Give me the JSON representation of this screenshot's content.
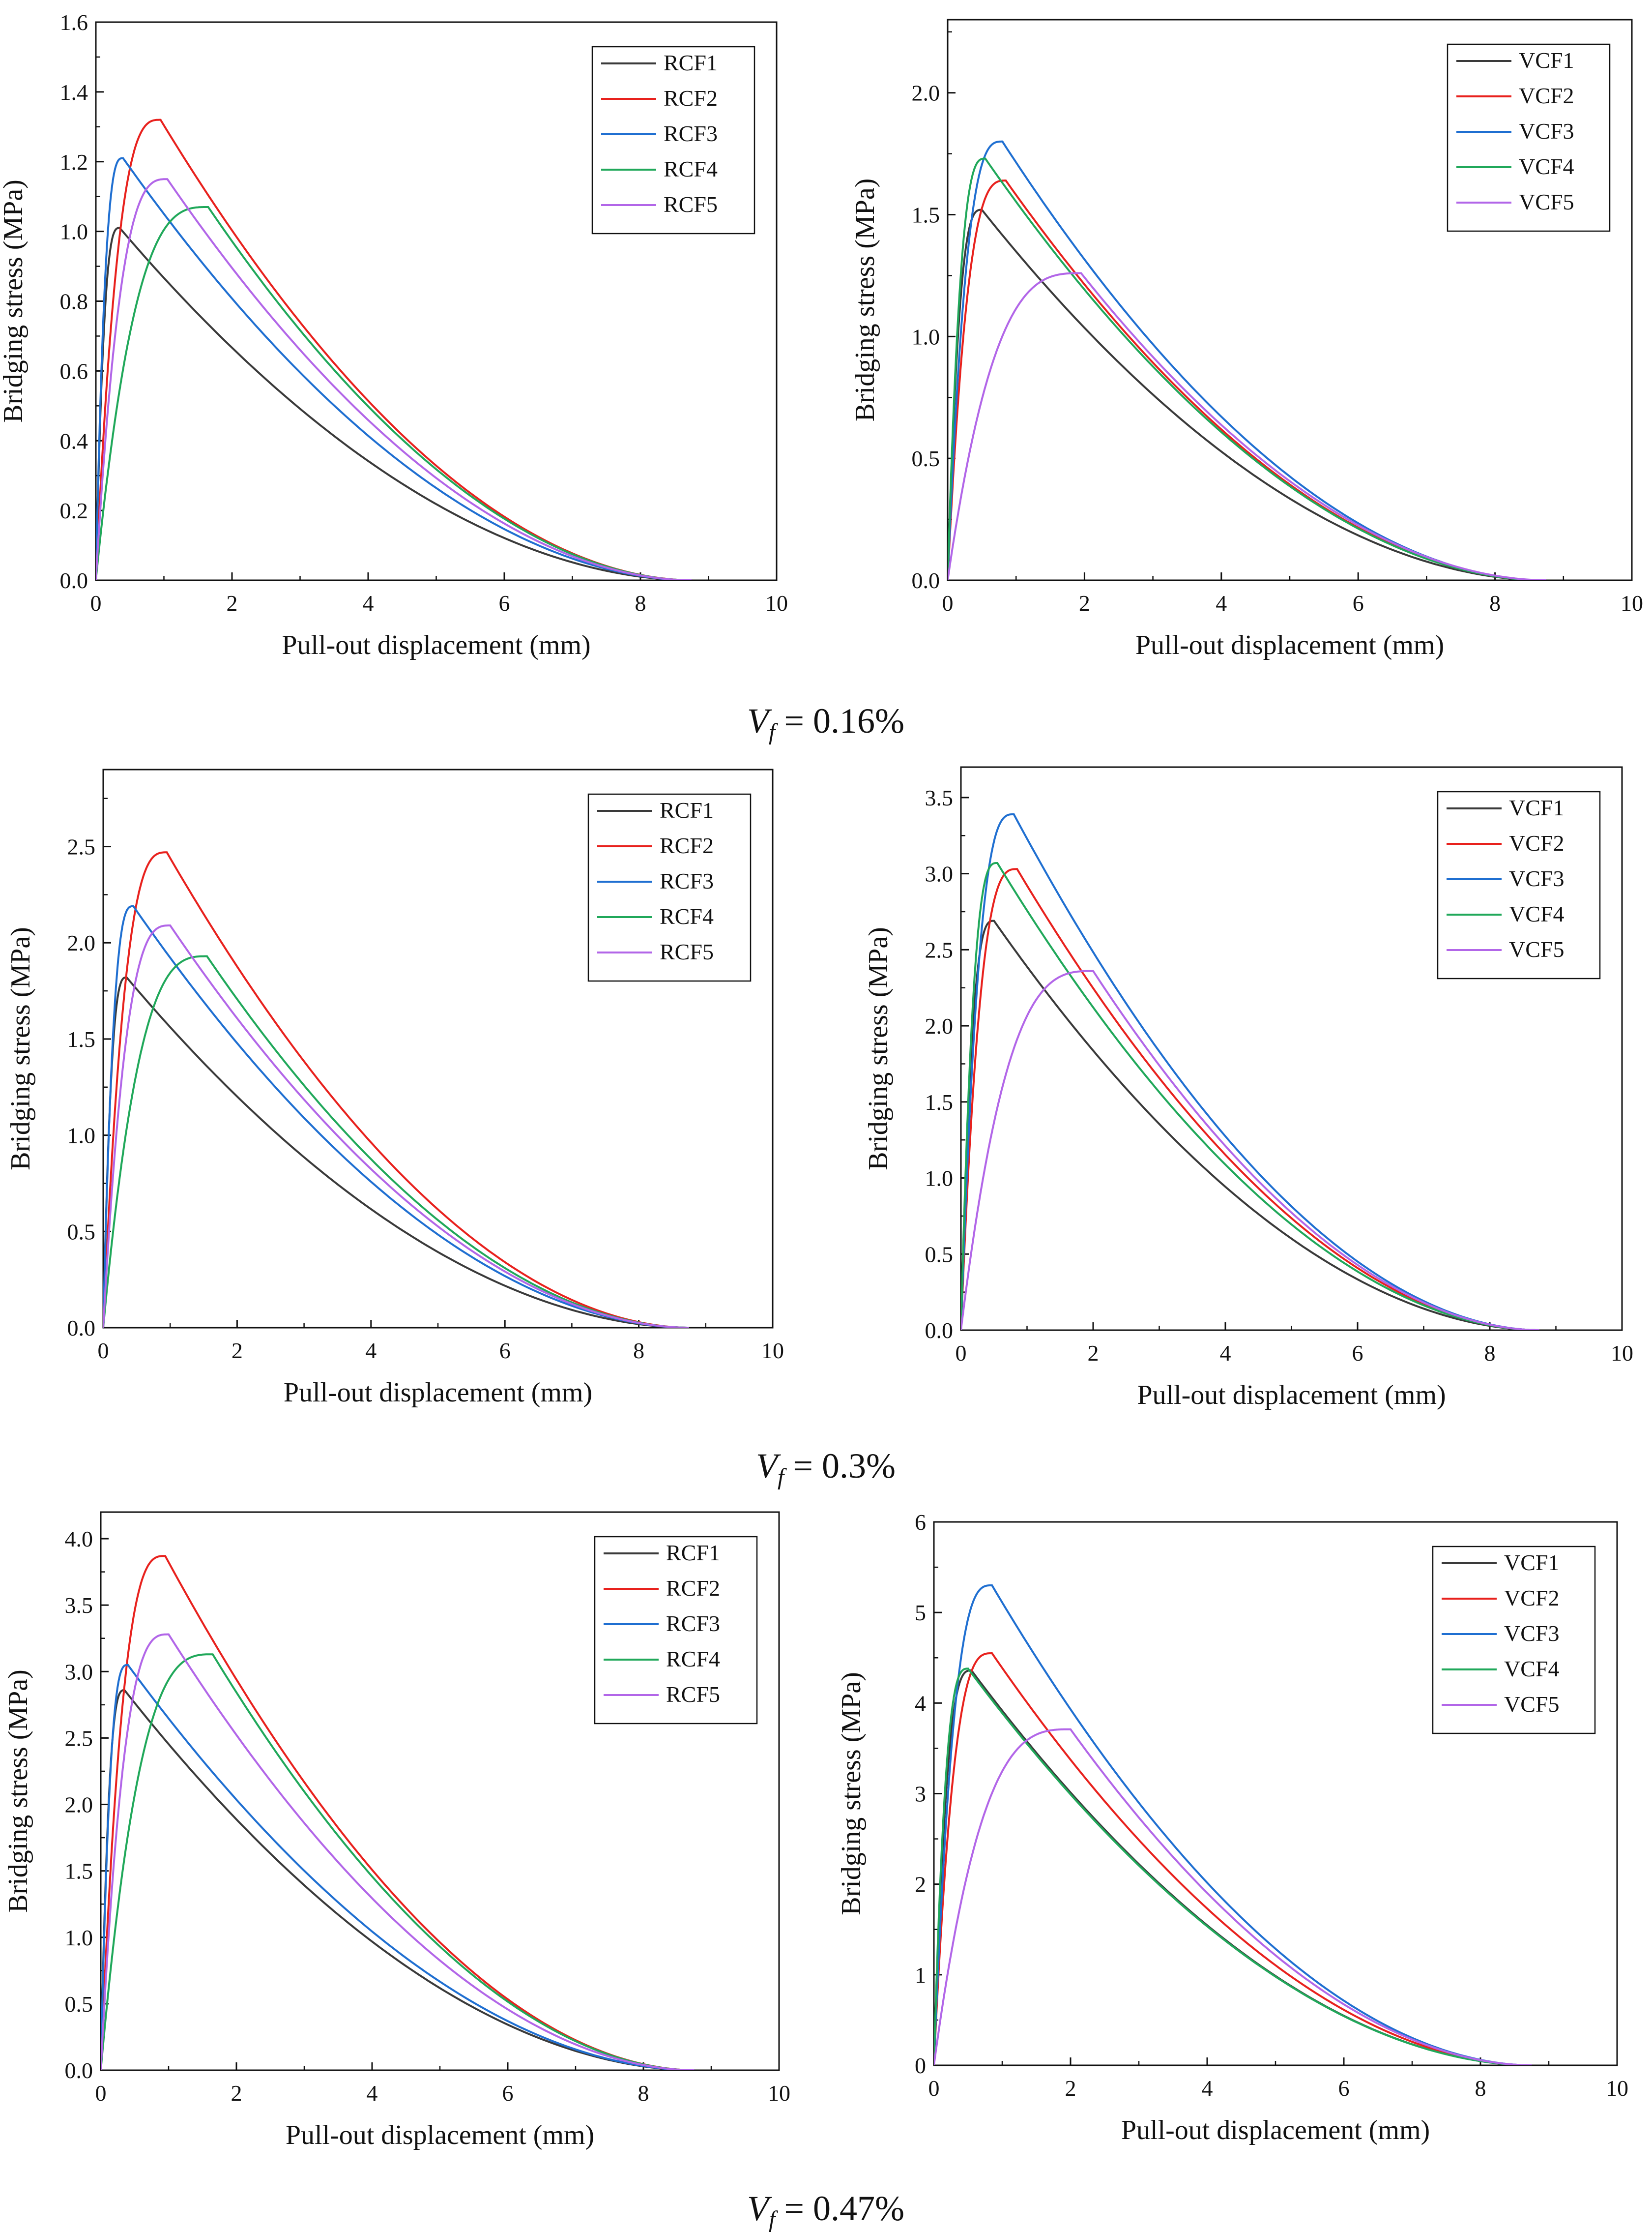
{
  "chart_data": [
    {
      "type": "line",
      "panel": "RCF Vf=0.16%",
      "xlabel": "Pull-out displacement (mm)",
      "ylabel": "Bridging stress (MPa)",
      "xlim": [
        0,
        10
      ],
      "ylim": [
        0,
        1.6
      ],
      "xticks": [
        "0",
        "2",
        "4",
        "6",
        "8",
        "10"
      ],
      "yticks": [
        "0.0",
        "0.2",
        "0.4",
        "0.6",
        "0.8",
        "1.0",
        "1.2",
        "1.4",
        "1.6"
      ],
      "legend_position": "top-right",
      "series": [
        {
          "name": "RCF1",
          "color": "#3a3a3a",
          "peak_x": 0.35,
          "peak_y": 1.01,
          "end_x": 8.75
        },
        {
          "name": "RCF2",
          "color": "#e8211d",
          "peak_x": 0.95,
          "peak_y": 1.32,
          "end_x": 8.75
        },
        {
          "name": "RCF3",
          "color": "#1f6fd1",
          "peak_x": 0.4,
          "peak_y": 1.21,
          "end_x": 8.75
        },
        {
          "name": "RCF4",
          "color": "#20a85a",
          "peak_x": 1.65,
          "peak_y": 1.07,
          "end_x": 8.75
        },
        {
          "name": "RCF5",
          "color": "#b266e8",
          "peak_x": 1.05,
          "peak_y": 1.15,
          "end_x": 8.75
        }
      ]
    },
    {
      "type": "line",
      "panel": "VCF Vf=0.16%",
      "xlabel": "Pull-out displacement (mm)",
      "ylabel": "Bridging stress (MPa)",
      "xlim": [
        0,
        10
      ],
      "ylim": [
        0,
        2.3
      ],
      "xticks": [
        "0",
        "2",
        "4",
        "6",
        "8",
        "10"
      ],
      "yticks": [
        "0.0",
        "0.5",
        "1.0",
        "1.5",
        "2.0"
      ],
      "legend_position": "top-right",
      "series": [
        {
          "name": "VCF1",
          "color": "#3a3a3a",
          "peak_x": 0.5,
          "peak_y": 1.52,
          "end_x": 8.7
        },
        {
          "name": "VCF2",
          "color": "#e8211d",
          "peak_x": 0.85,
          "peak_y": 1.64,
          "end_x": 8.7
        },
        {
          "name": "VCF3",
          "color": "#1f6fd1",
          "peak_x": 0.8,
          "peak_y": 1.8,
          "end_x": 8.7
        },
        {
          "name": "VCF4",
          "color": "#20a85a",
          "peak_x": 0.55,
          "peak_y": 1.73,
          "end_x": 8.7
        },
        {
          "name": "VCF5",
          "color": "#b266e8",
          "peak_x": 1.95,
          "peak_y": 1.26,
          "end_x": 8.75
        }
      ]
    },
    {
      "type": "line",
      "panel": "RCF Vf=0.3%",
      "xlabel": "Pull-out displacement (mm)",
      "ylabel": "Bridging stress (MPa)",
      "xlim": [
        0,
        10
      ],
      "ylim": [
        0,
        2.9
      ],
      "xticks": [
        "0",
        "2",
        "4",
        "6",
        "8",
        "10"
      ],
      "yticks": [
        "0.0",
        "0.5",
        "1.0",
        "1.5",
        "2.0",
        "2.5"
      ],
      "legend_position": "top-right",
      "series": [
        {
          "name": "RCF1",
          "color": "#3a3a3a",
          "peak_x": 0.35,
          "peak_y": 1.82,
          "end_x": 8.75
        },
        {
          "name": "RCF2",
          "color": "#e8211d",
          "peak_x": 0.95,
          "peak_y": 2.47,
          "end_x": 8.75
        },
        {
          "name": "RCF3",
          "color": "#1f6fd1",
          "peak_x": 0.45,
          "peak_y": 2.19,
          "end_x": 8.75
        },
        {
          "name": "RCF4",
          "color": "#20a85a",
          "peak_x": 1.55,
          "peak_y": 1.93,
          "end_x": 8.75
        },
        {
          "name": "RCF5",
          "color": "#b266e8",
          "peak_x": 1.0,
          "peak_y": 2.09,
          "end_x": 8.75
        }
      ]
    },
    {
      "type": "line",
      "panel": "VCF Vf=0.3%",
      "xlabel": "Pull-out displacement (mm)",
      "ylabel": "Bridging stress (MPa)",
      "xlim": [
        0,
        10
      ],
      "ylim": [
        0,
        3.7
      ],
      "xticks": [
        "0",
        "2",
        "4",
        "6",
        "8",
        "10"
      ],
      "yticks": [
        "0.0",
        "0.5",
        "1.0",
        "1.5",
        "2.0",
        "2.5",
        "3.0",
        "3.5"
      ],
      "legend_position": "top-right",
      "series": [
        {
          "name": "VCF1",
          "color": "#3a3a3a",
          "peak_x": 0.5,
          "peak_y": 2.69,
          "end_x": 8.75
        },
        {
          "name": "VCF2",
          "color": "#e8211d",
          "peak_x": 0.85,
          "peak_y": 3.03,
          "end_x": 8.75
        },
        {
          "name": "VCF3",
          "color": "#1f6fd1",
          "peak_x": 0.8,
          "peak_y": 3.39,
          "end_x": 8.75
        },
        {
          "name": "VCF4",
          "color": "#20a85a",
          "peak_x": 0.55,
          "peak_y": 3.07,
          "end_x": 8.75
        },
        {
          "name": "VCF5",
          "color": "#b266e8",
          "peak_x": 2.0,
          "peak_y": 2.36,
          "end_x": 8.75
        }
      ]
    },
    {
      "type": "line",
      "panel": "RCF Vf=0.47%",
      "xlabel": "Pull-out displacement (mm)",
      "ylabel": "Bridging stress (MPa)",
      "xlim": [
        0,
        10
      ],
      "ylim": [
        0,
        4.2
      ],
      "xticks": [
        "0",
        "2",
        "4",
        "6",
        "8",
        "10"
      ],
      "yticks": [
        "0.0",
        "0.5",
        "1.0",
        "1.5",
        "2.0",
        "2.5",
        "3.0",
        "3.5",
        "4.0"
      ],
      "legend_position": "top-right",
      "series": [
        {
          "name": "RCF1",
          "color": "#3a3a3a",
          "peak_x": 0.35,
          "peak_y": 2.86,
          "end_x": 8.75
        },
        {
          "name": "RCF2",
          "color": "#e8211d",
          "peak_x": 0.95,
          "peak_y": 3.87,
          "end_x": 8.75
        },
        {
          "name": "RCF3",
          "color": "#1f6fd1",
          "peak_x": 0.4,
          "peak_y": 3.05,
          "end_x": 8.75
        },
        {
          "name": "RCF4",
          "color": "#20a85a",
          "peak_x": 1.65,
          "peak_y": 3.13,
          "end_x": 8.75
        },
        {
          "name": "RCF5",
          "color": "#b266e8",
          "peak_x": 1.0,
          "peak_y": 3.28,
          "end_x": 8.75
        }
      ]
    },
    {
      "type": "line",
      "panel": "VCF Vf=0.47%",
      "xlabel": "Pull-out displacement (mm)",
      "ylabel": "Bridging stress (MPa)",
      "xlim": [
        0,
        10
      ],
      "ylim": [
        0,
        6
      ],
      "xticks": [
        "0",
        "2",
        "4",
        "6",
        "8",
        "10"
      ],
      "yticks": [
        "0",
        "1",
        "2",
        "3",
        "4",
        "5",
        "6"
      ],
      "legend_position": "top-right",
      "series": [
        {
          "name": "VCF1",
          "color": "#3a3a3a",
          "peak_x": 0.55,
          "peak_y": 4.36,
          "end_x": 8.75
        },
        {
          "name": "VCF2",
          "color": "#e8211d",
          "peak_x": 0.85,
          "peak_y": 4.55,
          "end_x": 8.75
        },
        {
          "name": "VCF3",
          "color": "#1f6fd1",
          "peak_x": 0.85,
          "peak_y": 5.3,
          "end_x": 8.75
        },
        {
          "name": "VCF4",
          "color": "#20a85a",
          "peak_x": 0.5,
          "peak_y": 4.38,
          "end_x": 8.75
        },
        {
          "name": "VCF5",
          "color": "#b266e8",
          "peak_x": 2.0,
          "peak_y": 3.71,
          "end_x": 8.75
        }
      ]
    }
  ],
  "captions": [
    {
      "symbol": "V",
      "sub": "f",
      "rest": " = 0.16%"
    },
    {
      "symbol": "V",
      "sub": "f",
      "rest": " = 0.3%"
    },
    {
      "symbol": "V",
      "sub": "f",
      "rest": " = 0.47%"
    }
  ]
}
